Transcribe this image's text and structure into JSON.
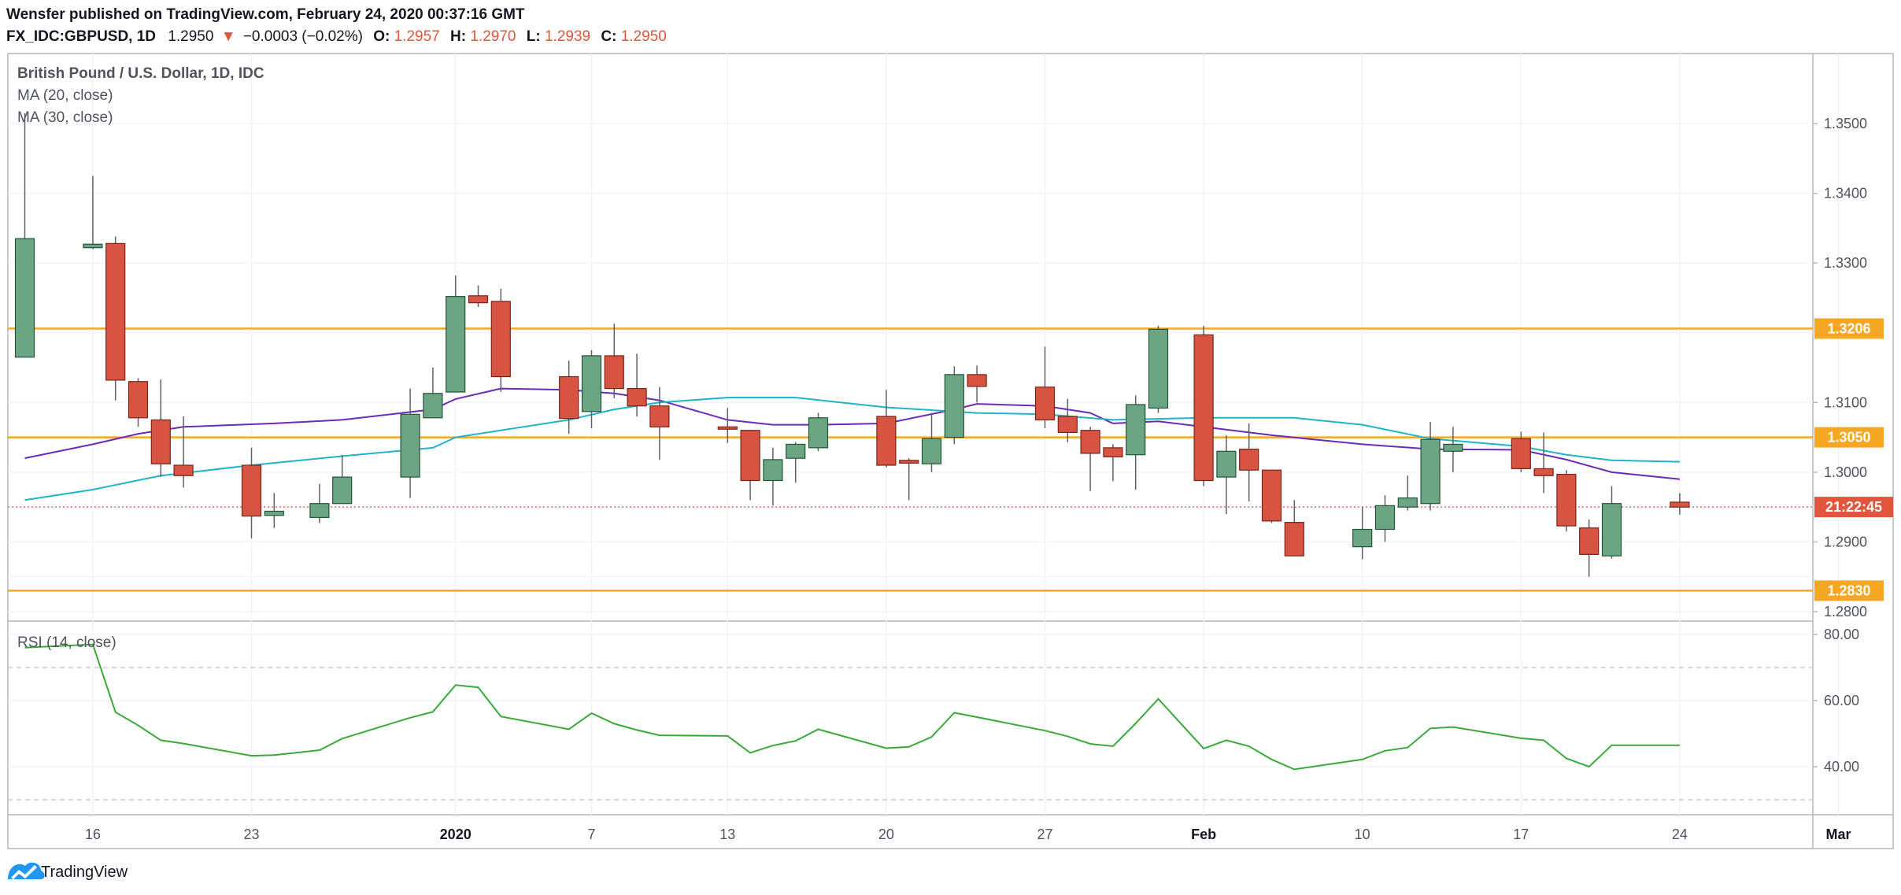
{
  "header": {
    "published_line": "Wensfer published on TradingView.com, February 24, 2020 00:37:16 GMT",
    "symbol": "FX_IDC:GBPUSD, 1D",
    "last_price": "1.2950",
    "change_arrow": "▼",
    "change": "−0.0003 (−0.02%)",
    "o_label": "O:",
    "o_value": "1.2957",
    "h_label": "H:",
    "h_value": "1.2970",
    "l_label": "L:",
    "l_value": "1.2939",
    "c_label": "C:",
    "c_value": "1.2950"
  },
  "legend": {
    "instrument": "British Pound / U.S. Dollar, 1D, IDC",
    "ma20": "MA (20, close)",
    "ma30": "MA (30, close)",
    "rsi": "RSI (14, close)"
  },
  "badges": {
    "level_1": "1.3206",
    "level_2": "1.3050",
    "level_3": "1.2830",
    "countdown": "21:22:45"
  },
  "footer": {
    "brand": "TradingView",
    "logo_icon": "tradingview-logo-icon"
  },
  "colors": {
    "up_fill": "#6ba583",
    "down_fill": "#d75442",
    "candle_border": "#225437",
    "ma20": "#6a2bb8",
    "ma30": "#1fb4c8",
    "rsi": "#3aa93a",
    "level_line": "#f5a623",
    "price_line": "#e0553b"
  },
  "chart_data": [
    {
      "type": "candlestick",
      "title": "British Pound / U.S. Dollar, 1D, IDC",
      "ylim": [
        1.277,
        1.361
      ],
      "y_ticks": [
        "1.3500",
        "1.3400",
        "1.3300",
        "1.3100",
        "1.3000",
        "1.2900",
        "1.2800"
      ],
      "y_tick_values": [
        1.35,
        1.34,
        1.33,
        1.31,
        1.3,
        1.29,
        1.28
      ],
      "x_tick_labels": [
        {
          "label": "16",
          "date": "2019-12-16",
          "bold": false
        },
        {
          "label": "23",
          "date": "2019-12-23",
          "bold": false
        },
        {
          "label": "2020",
          "date": "2020-01-01",
          "bold": true
        },
        {
          "label": "7",
          "date": "2020-01-07",
          "bold": false
        },
        {
          "label": "13",
          "date": "2020-01-13",
          "bold": false
        },
        {
          "label": "20",
          "date": "2020-01-20",
          "bold": false
        },
        {
          "label": "27",
          "date": "2020-01-27",
          "bold": false
        },
        {
          "label": "Feb",
          "date": "2020-02-03",
          "bold": true
        },
        {
          "label": "10",
          "date": "2020-02-10",
          "bold": false
        },
        {
          "label": "17",
          "date": "2020-02-17",
          "bold": false
        },
        {
          "label": "24",
          "date": "2020-02-24",
          "bold": false
        },
        {
          "label": "Mar",
          "date": "2020-03-02",
          "bold": true
        }
      ],
      "x_range": [
        "2019-12-13",
        "2020-03-02"
      ],
      "candles": [
        {
          "date": "2019-12-13",
          "o": 1.3165,
          "h": 1.3515,
          "l": 1.3165,
          "c": 1.3335
        },
        {
          "date": "2019-12-16",
          "o": 1.3322,
          "h": 1.3425,
          "l": 1.332,
          "c": 1.3327
        },
        {
          "date": "2019-12-17",
          "o": 1.3328,
          "h": 1.3338,
          "l": 1.3103,
          "c": 1.3132
        },
        {
          "date": "2019-12-18",
          "o": 1.313,
          "h": 1.3135,
          "l": 1.3065,
          "c": 1.3078
        },
        {
          "date": "2019-12-19",
          "o": 1.3075,
          "h": 1.3133,
          "l": 1.2993,
          "c": 1.3012
        },
        {
          "date": "2019-12-20",
          "o": 1.301,
          "h": 1.308,
          "l": 1.2978,
          "c": 1.2995
        },
        {
          "date": "2019-12-23",
          "o": 1.301,
          "h": 1.3035,
          "l": 1.2905,
          "c": 1.2937
        },
        {
          "date": "2019-12-24",
          "o": 1.2938,
          "h": 1.297,
          "l": 1.292,
          "c": 1.2944
        },
        {
          "date": "2019-12-26",
          "o": 1.2935,
          "h": 1.2983,
          "l": 1.2927,
          "c": 1.2955
        },
        {
          "date": "2019-12-27",
          "o": 1.2955,
          "h": 1.3025,
          "l": 1.2955,
          "c": 1.2993
        },
        {
          "date": "2019-12-30",
          "o": 1.2993,
          "h": 1.312,
          "l": 1.2963,
          "c": 1.3083
        },
        {
          "date": "2019-12-31",
          "o": 1.3078,
          "h": 1.315,
          "l": 1.3078,
          "c": 1.3113
        },
        {
          "date": "2020-01-01",
          "o": 1.3115,
          "h": 1.3282,
          "l": 1.3115,
          "c": 1.3252
        },
        {
          "date": "2020-01-02",
          "o": 1.3253,
          "h": 1.3268,
          "l": 1.3237,
          "c": 1.3243
        },
        {
          "date": "2020-01-03",
          "o": 1.3245,
          "h": 1.3263,
          "l": 1.3115,
          "c": 1.3137
        },
        {
          "date": "2020-01-06",
          "o": 1.3137,
          "h": 1.316,
          "l": 1.3055,
          "c": 1.3077
        },
        {
          "date": "2020-01-07",
          "o": 1.3087,
          "h": 1.3175,
          "l": 1.3063,
          "c": 1.3167
        },
        {
          "date": "2020-01-08",
          "o": 1.3167,
          "h": 1.3213,
          "l": 1.3106,
          "c": 1.312
        },
        {
          "date": "2020-01-09",
          "o": 1.312,
          "h": 1.317,
          "l": 1.308,
          "c": 1.3095
        },
        {
          "date": "2020-01-10",
          "o": 1.3095,
          "h": 1.3122,
          "l": 1.3018,
          "c": 1.3065
        },
        {
          "date": "2020-01-13",
          "o": 1.3065,
          "h": 1.3092,
          "l": 1.3042,
          "c": 1.3064
        },
        {
          "date": "2020-01-14",
          "o": 1.306,
          "h": 1.306,
          "l": 1.296,
          "c": 1.2988
        },
        {
          "date": "2020-01-15",
          "o": 1.2988,
          "h": 1.3035,
          "l": 1.2952,
          "c": 1.3018
        },
        {
          "date": "2020-01-16",
          "o": 1.302,
          "h": 1.3043,
          "l": 1.2985,
          "c": 1.304
        },
        {
          "date": "2020-01-17",
          "o": 1.3035,
          "h": 1.3085,
          "l": 1.303,
          "c": 1.3078
        },
        {
          "date": "2020-01-20",
          "o": 1.308,
          "h": 1.3118,
          "l": 1.3007,
          "c": 1.301
        },
        {
          "date": "2020-01-21",
          "o": 1.3017,
          "h": 1.302,
          "l": 1.296,
          "c": 1.3013
        },
        {
          "date": "2020-01-22",
          "o": 1.3012,
          "h": 1.3085,
          "l": 1.3,
          "c": 1.3048
        },
        {
          "date": "2020-01-23",
          "o": 1.305,
          "h": 1.3152,
          "l": 1.304,
          "c": 1.314
        },
        {
          "date": "2020-01-24",
          "o": 1.314,
          "h": 1.3153,
          "l": 1.31,
          "c": 1.3123
        },
        {
          "date": "2020-01-27",
          "o": 1.3122,
          "h": 1.318,
          "l": 1.3063,
          "c": 1.3075
        },
        {
          "date": "2020-01-28",
          "o": 1.308,
          "h": 1.3105,
          "l": 1.3043,
          "c": 1.3057
        },
        {
          "date": "2020-01-29",
          "o": 1.306,
          "h": 1.3065,
          "l": 1.2973,
          "c": 1.3027
        },
        {
          "date": "2020-01-30",
          "o": 1.3035,
          "h": 1.304,
          "l": 1.2987,
          "c": 1.3022
        },
        {
          "date": "2020-01-31",
          "o": 1.3025,
          "h": 1.311,
          "l": 1.2975,
          "c": 1.3097
        },
        {
          "date": "2020-02-01",
          "o": 1.3092,
          "h": 1.321,
          "l": 1.3085,
          "c": 1.3205
        },
        {
          "date": "2020-02-03",
          "o": 1.3197,
          "h": 1.321,
          "l": 1.298,
          "c": 1.2988
        },
        {
          "date": "2020-02-04",
          "o": 1.2993,
          "h": 1.3053,
          "l": 1.294,
          "c": 1.303
        },
        {
          "date": "2020-02-05",
          "o": 1.3033,
          "h": 1.307,
          "l": 1.2958,
          "c": 1.3003
        },
        {
          "date": "2020-02-06",
          "o": 1.3003,
          "h": 1.3003,
          "l": 1.2927,
          "c": 1.293
        },
        {
          "date": "2020-02-07",
          "o": 1.2928,
          "h": 1.296,
          "l": 1.288,
          "c": 1.288
        },
        {
          "date": "2020-02-10",
          "o": 1.2893,
          "h": 1.295,
          "l": 1.2875,
          "c": 1.2918
        },
        {
          "date": "2020-02-11",
          "o": 1.2918,
          "h": 1.2967,
          "l": 1.29,
          "c": 1.2952
        },
        {
          "date": "2020-02-12",
          "o": 1.295,
          "h": 1.2995,
          "l": 1.2945,
          "c": 1.2963
        },
        {
          "date": "2020-02-13",
          "o": 1.2955,
          "h": 1.3072,
          "l": 1.2945,
          "c": 1.3047
        },
        {
          "date": "2020-02-14",
          "o": 1.303,
          "h": 1.3065,
          "l": 1.3,
          "c": 1.304
        },
        {
          "date": "2020-02-17",
          "o": 1.3048,
          "h": 1.3058,
          "l": 1.3,
          "c": 1.3005
        },
        {
          "date": "2020-02-18",
          "o": 1.3005,
          "h": 1.3057,
          "l": 1.297,
          "c": 1.2995
        },
        {
          "date": "2020-02-19",
          "o": 1.2997,
          "h": 1.3003,
          "l": 1.2915,
          "c": 1.2923
        },
        {
          "date": "2020-02-20",
          "o": 1.292,
          "h": 1.2932,
          "l": 1.285,
          "c": 1.2882
        },
        {
          "date": "2020-02-21",
          "o": 1.288,
          "h": 1.298,
          "l": 1.2876,
          "c": 1.2955
        },
        {
          "date": "2020-02-24",
          "o": 1.2957,
          "h": 1.297,
          "l": 1.2939,
          "c": 1.295
        }
      ],
      "series": [
        {
          "name": "MA (20, close)",
          "points": [
            [
              "2019-12-13",
              1.302
            ],
            [
              "2019-12-16",
              1.304
            ],
            [
              "2019-12-18",
              1.3055
            ],
            [
              "2019-12-20",
              1.3065
            ],
            [
              "2019-12-24",
              1.307
            ],
            [
              "2019-12-27",
              1.3075
            ],
            [
              "2019-12-31",
              1.309
            ],
            [
              "2020-01-01",
              1.3105
            ],
            [
              "2020-01-03",
              1.312
            ],
            [
              "2020-01-06",
              1.3118
            ],
            [
              "2020-01-08",
              1.3113
            ],
            [
              "2020-01-10",
              1.3103
            ],
            [
              "2020-01-13",
              1.3075
            ],
            [
              "2020-01-15",
              1.3068
            ],
            [
              "2020-01-17",
              1.3068
            ],
            [
              "2020-01-20",
              1.307
            ],
            [
              "2020-01-23",
              1.309
            ],
            [
              "2020-01-24",
              1.3098
            ],
            [
              "2020-01-27",
              1.3095
            ],
            [
              "2020-01-29",
              1.3085
            ],
            [
              "2020-01-30",
              1.307
            ],
            [
              "2020-02-01",
              1.3073
            ],
            [
              "2020-02-03",
              1.3065
            ],
            [
              "2020-02-06",
              1.3053
            ],
            [
              "2020-02-10",
              1.304
            ],
            [
              "2020-02-13",
              1.3033
            ],
            [
              "2020-02-17",
              1.3032
            ],
            [
              "2020-02-19",
              1.3018
            ],
            [
              "2020-02-21",
              1.3
            ],
            [
              "2020-02-24",
              1.299
            ]
          ]
        },
        {
          "name": "MA (30, close)",
          "points": [
            [
              "2019-12-13",
              1.296
            ],
            [
              "2019-12-16",
              1.2975
            ],
            [
              "2019-12-19",
              1.2995
            ],
            [
              "2019-12-23",
              1.301
            ],
            [
              "2019-12-27",
              1.3023
            ],
            [
              "2019-12-31",
              1.3035
            ],
            [
              "2020-01-01",
              1.305
            ],
            [
              "2020-01-06",
              1.3075
            ],
            [
              "2020-01-08",
              1.309
            ],
            [
              "2020-01-10",
              1.31
            ],
            [
              "2020-01-13",
              1.3107
            ],
            [
              "2020-01-16",
              1.3107
            ],
            [
              "2020-01-20",
              1.3093
            ],
            [
              "2020-01-24",
              1.3085
            ],
            [
              "2020-01-27",
              1.3083
            ],
            [
              "2020-01-30",
              1.3075
            ],
            [
              "2020-02-03",
              1.3078
            ],
            [
              "2020-02-07",
              1.3078
            ],
            [
              "2020-02-10",
              1.3068
            ],
            [
              "2020-02-13",
              1.3048
            ],
            [
              "2020-02-17",
              1.3037
            ],
            [
              "2020-02-19",
              1.3025
            ],
            [
              "2020-02-21",
              1.3017
            ],
            [
              "2020-02-24",
              1.3015
            ]
          ]
        }
      ],
      "horizontal_levels": [
        1.3206,
        1.305,
        1.283
      ],
      "current_price": 1.295
    },
    {
      "type": "line",
      "title": "RSI (14, close)",
      "ylim": [
        26,
        83
      ],
      "y_ticks": [
        "80.00",
        "60.00",
        "40.00"
      ],
      "y_tick_values": [
        80,
        60,
        40
      ],
      "dashed_bands": [
        70,
        30
      ],
      "series": [
        {
          "name": "RSI (14, close)",
          "points": [
            [
              "2019-12-13",
              76
            ],
            [
              "2019-12-16",
              77
            ],
            [
              "2019-12-17",
              56.5
            ],
            [
              "2019-12-18",
              52.5
            ],
            [
              "2019-12-19",
              48
            ],
            [
              "2019-12-20",
              47
            ],
            [
              "2019-12-23",
              43.3
            ],
            [
              "2019-12-24",
              43.5
            ],
            [
              "2019-12-26",
              45
            ],
            [
              "2019-12-27",
              48.5
            ],
            [
              "2019-12-30",
              54.8
            ],
            [
              "2019-12-31",
              56.6
            ],
            [
              "2020-01-01",
              64.7
            ],
            [
              "2020-01-02",
              64
            ],
            [
              "2020-01-03",
              55.2
            ],
            [
              "2020-01-06",
              51.3
            ],
            [
              "2020-01-07",
              56.2
            ],
            [
              "2020-01-08",
              53
            ],
            [
              "2020-01-09",
              51.1
            ],
            [
              "2020-01-10",
              49.5
            ],
            [
              "2020-01-13",
              49.3
            ],
            [
              "2020-01-14",
              44.2
            ],
            [
              "2020-01-15",
              46.4
            ],
            [
              "2020-01-16",
              47.8
            ],
            [
              "2020-01-17",
              51.3
            ],
            [
              "2020-01-20",
              45.6
            ],
            [
              "2020-01-21",
              46
            ],
            [
              "2020-01-22",
              49
            ],
            [
              "2020-01-23",
              56.3
            ],
            [
              "2020-01-24",
              55
            ],
            [
              "2020-01-27",
              50.9
            ],
            [
              "2020-01-28",
              49.2
            ],
            [
              "2020-01-29",
              46.9
            ],
            [
              "2020-01-30",
              46.2
            ],
            [
              "2020-01-31",
              53.1
            ],
            [
              "2020-02-01",
              60.5
            ],
            [
              "2020-02-03",
              45.5
            ],
            [
              "2020-02-04",
              48
            ],
            [
              "2020-02-05",
              46.2
            ],
            [
              "2020-02-06",
              42.2
            ],
            [
              "2020-02-07",
              39.2
            ],
            [
              "2020-02-10",
              42.2
            ],
            [
              "2020-02-11",
              44.8
            ],
            [
              "2020-02-12",
              45.8
            ],
            [
              "2020-02-13",
              51.6
            ],
            [
              "2020-02-14",
              52
            ],
            [
              "2020-02-17",
              48.6
            ],
            [
              "2020-02-18",
              48
            ],
            [
              "2020-02-19",
              42.5
            ],
            [
              "2020-02-20",
              40
            ],
            [
              "2020-02-21",
              46.5
            ],
            [
              "2020-02-24",
              46.5
            ]
          ]
        }
      ]
    }
  ]
}
